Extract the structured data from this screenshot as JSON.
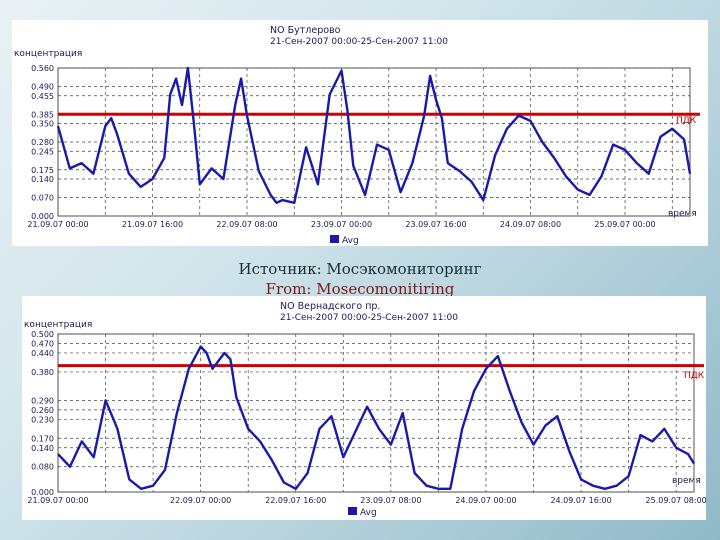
{
  "caption": {
    "ru": "Источник: Мосэкомониторинг",
    "en": "From: Mosecomonitiring"
  },
  "chart_data": [
    {
      "type": "line",
      "title": "NO Бутлерово",
      "subtitle": "21-Сен-2007 00:00-25-Сен-2007 11:00",
      "ylabel": "концентрация",
      "xlabel": "время",
      "ylim": [
        0,
        0.56
      ],
      "yticks": [
        0.0,
        0.07,
        0.14,
        0.175,
        0.245,
        0.28,
        0.35,
        0.385,
        0.455,
        0.49,
        0.56
      ],
      "ytick_labels": [
        "0.000",
        "0.070",
        "0.140",
        "0.175",
        "0.245",
        "0.280",
        "0.350",
        "0.385",
        "0.455",
        "0.490",
        "0.560"
      ],
      "xlim": [
        0,
        107
      ],
      "xtick_labels": [
        "21.09.07 00:00",
        "21.09.07 16:00",
        "22.09.07 08:00",
        "23.09.07 00:00",
        "23.09.07 16:00",
        "24.09.07 08:00",
        "25.09.07 00:00"
      ],
      "xtick_positions": [
        0,
        16,
        32,
        48,
        64,
        80,
        96
      ],
      "threshold": {
        "label": "ПДК",
        "value": 0.385,
        "color": "#cc0000"
      },
      "line_color": "#1a1aaa",
      "legend": [
        "Avg"
      ],
      "legend_position": "bottom",
      "series": [
        {
          "name": "Avg",
          "x": [
            0,
            2,
            4,
            6,
            8,
            9,
            10,
            12,
            14,
            16,
            18,
            19,
            20,
            21,
            22,
            23,
            24,
            26,
            28,
            30,
            31,
            32,
            34,
            36,
            37,
            38,
            40,
            42,
            44,
            46,
            48,
            49,
            50,
            52,
            54,
            56,
            58,
            60,
            62,
            63,
            64,
            65,
            66,
            68,
            70,
            72,
            74,
            76,
            78,
            80,
            82,
            84,
            86,
            88,
            90,
            92,
            94,
            96,
            98,
            100,
            102,
            104,
            106,
            107
          ],
          "values": [
            0.34,
            0.18,
            0.2,
            0.16,
            0.34,
            0.37,
            0.31,
            0.16,
            0.11,
            0.14,
            0.22,
            0.46,
            0.52,
            0.42,
            0.56,
            0.35,
            0.12,
            0.18,
            0.14,
            0.42,
            0.52,
            0.38,
            0.17,
            0.08,
            0.05,
            0.06,
            0.05,
            0.26,
            0.12,
            0.46,
            0.55,
            0.4,
            0.19,
            0.08,
            0.27,
            0.25,
            0.09,
            0.2,
            0.38,
            0.53,
            0.44,
            0.37,
            0.2,
            0.17,
            0.13,
            0.06,
            0.23,
            0.33,
            0.38,
            0.36,
            0.28,
            0.22,
            0.15,
            0.1,
            0.08,
            0.15,
            0.27,
            0.25,
            0.2,
            0.16,
            0.3,
            0.33,
            0.29,
            0.16
          ]
        }
      ]
    },
    {
      "type": "line",
      "title": "NO Вернадского пр.",
      "subtitle": "21-Сен-2007 00:00-25-Сен-2007 11:00",
      "ylabel": "концентрация",
      "xlabel": "время",
      "ylim": [
        0,
        0.5
      ],
      "yticks": [
        0.0,
        0.08,
        0.14,
        0.17,
        0.23,
        0.26,
        0.29,
        0.38,
        0.44,
        0.47,
        0.5
      ],
      "ytick_labels": [
        "0.000",
        "0.080",
        "0.140",
        "0.170",
        "0.230",
        "0.260",
        "0.290",
        "0.380",
        "0.440",
        "0.470",
        "0.500"
      ],
      "xlim": [
        0,
        107
      ],
      "xtick_labels": [
        "21.09.07 00:00",
        "22.09.07 00:00",
        "22.09.07 16:00",
        "23.09.07 08:00",
        "24.09.07 00:00",
        "24.09.07 16:00",
        "25.09.07 08:00"
      ],
      "xtick_positions": [
        0,
        24,
        40,
        56,
        72,
        88,
        104
      ],
      "threshold": {
        "label": "ПДК",
        "value": 0.4,
        "color": "#cc0000"
      },
      "line_color": "#1a1aaa",
      "legend": [
        "Avg"
      ],
      "legend_position": "bottom",
      "series": [
        {
          "name": "Avg",
          "x": [
            0,
            2,
            4,
            6,
            8,
            10,
            12,
            14,
            16,
            18,
            20,
            22,
            24,
            25,
            26,
            28,
            29,
            30,
            32,
            34,
            36,
            38,
            40,
            42,
            44,
            46,
            48,
            50,
            52,
            54,
            56,
            58,
            60,
            62,
            64,
            66,
            68,
            70,
            72,
            74,
            76,
            78,
            80,
            82,
            84,
            86,
            88,
            90,
            92,
            94,
            96,
            98,
            100,
            102,
            104,
            106,
            107
          ],
          "values": [
            0.12,
            0.08,
            0.16,
            0.11,
            0.29,
            0.2,
            0.04,
            0.01,
            0.02,
            0.07,
            0.25,
            0.39,
            0.46,
            0.44,
            0.39,
            0.44,
            0.42,
            0.3,
            0.2,
            0.16,
            0.1,
            0.03,
            0.01,
            0.06,
            0.2,
            0.24,
            0.11,
            0.19,
            0.27,
            0.2,
            0.15,
            0.25,
            0.06,
            0.02,
            0.01,
            0.01,
            0.2,
            0.32,
            0.39,
            0.43,
            0.32,
            0.22,
            0.15,
            0.21,
            0.24,
            0.13,
            0.04,
            0.02,
            0.01,
            0.02,
            0.05,
            0.18,
            0.16,
            0.2,
            0.14,
            0.12,
            0.09
          ]
        }
      ]
    }
  ]
}
